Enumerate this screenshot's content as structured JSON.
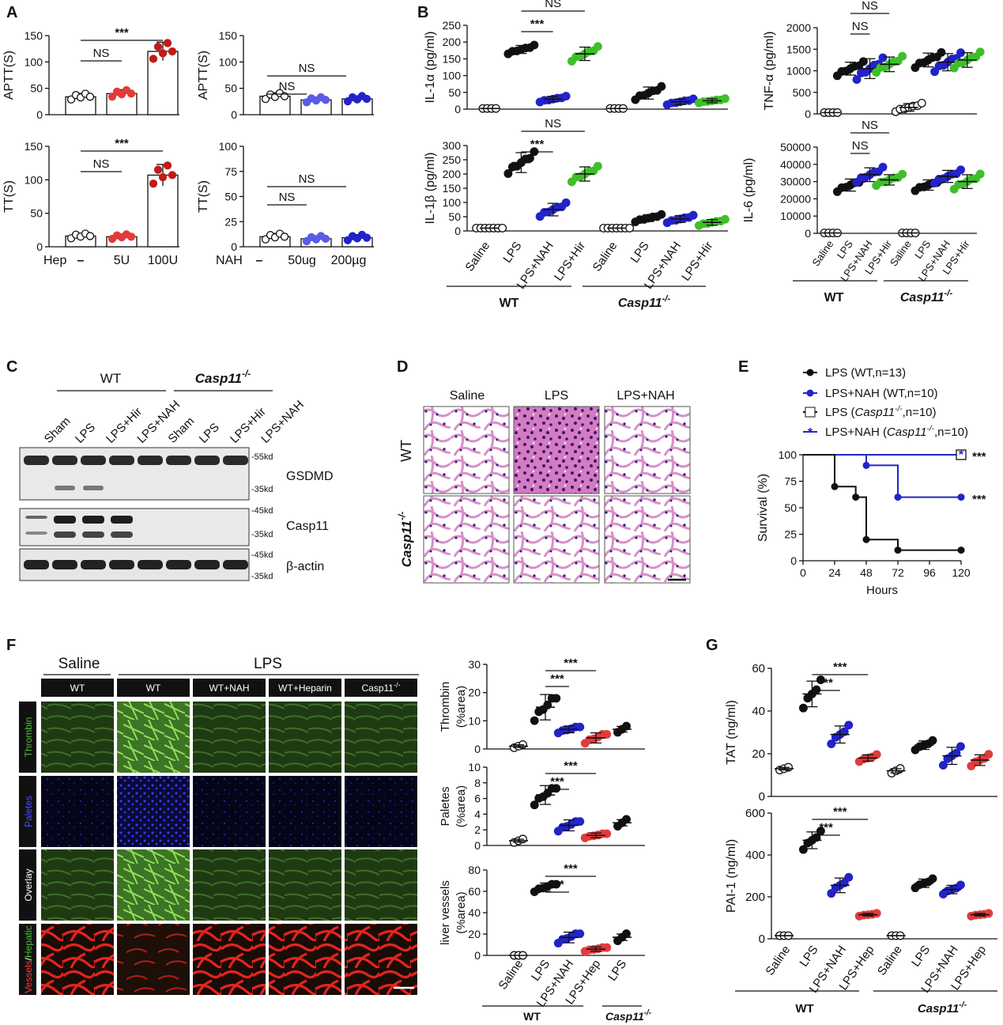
{
  "panels": {
    "A": "A",
    "B": "B",
    "C": "C",
    "D": "D",
    "E": "E",
    "F": "F",
    "G": "G"
  },
  "common": {
    "ns": "NS",
    "sig3": "***",
    "wt": "WT",
    "casp11": "Casp11",
    "casp11_sup": "-/-"
  },
  "colors": {
    "black": "#111111",
    "white": "#ffffff",
    "red": "#e23b3b",
    "dark_red": "#c21a1a",
    "blue": "#2323c8",
    "light_blue": "#5b5be6",
    "green": "#3fbf2a",
    "tissue_pink": "#e8a3d8",
    "nuclei": "#3a1f7a",
    "ihc_green": "#3e6f2a",
    "ihc_blue": "#1b1b7a",
    "ihc_red": "#d41f1f"
  },
  "panel_a": {
    "heparin_x": [
      "Hep",
      "–",
      "5U",
      "100U"
    ],
    "nah_x": [
      "NAH",
      "–",
      "50ug",
      "200µg"
    ],
    "aptt_label": "APTT(S)",
    "tt_label": "TT(S)",
    "y_ticks": [
      "0",
      "50",
      "100",
      "150"
    ],
    "chart_data": [
      {
        "type": "bar",
        "title": "",
        "ylabel": "APTT(S)",
        "categories": [
          "–",
          "5U",
          "100U"
        ],
        "values": [
          34,
          40,
          120
        ],
        "ylim": [
          0,
          150
        ]
      },
      {
        "type": "bar",
        "title": "",
        "ylabel": "APTT(S)",
        "categories": [
          "–",
          "50ug",
          "200µg"
        ],
        "values": [
          35,
          28,
          30
        ],
        "ylim": [
          0,
          150
        ]
      },
      {
        "type": "bar",
        "title": "",
        "ylabel": "TT(S)",
        "categories": [
          "–",
          "5U",
          "100U"
        ],
        "values": [
          16,
          15,
          107
        ],
        "ylim": [
          0,
          150
        ]
      },
      {
        "type": "bar",
        "title": "",
        "ylabel": "TT(S)",
        "categories": [
          "–",
          "50ug",
          "200µg"
        ],
        "values": [
          10,
          8,
          9
        ],
        "ylim": [
          0,
          100
        ]
      }
    ]
  },
  "panel_b": {
    "il1a_label": "IL-1α (pg/ml)",
    "il1b_label": "IL-1β (pg/ml)",
    "tnf_label": "TNF-α (pg/ml)",
    "il6_label": "IL-6 (pg/ml)",
    "x_labels": [
      "Saline",
      "LPS",
      "LPS+NAH",
      "LPS+Hir",
      "Saline",
      "LPS",
      "LPS+NAH",
      "LPS+Hir"
    ],
    "il1a_ticks": [
      "0",
      "50",
      "100",
      "150",
      "200",
      "250"
    ],
    "il1b_ticks": [
      "0",
      "50",
      "100",
      "150",
      "200",
      "250",
      "300"
    ],
    "tnf_ticks": [
      "0",
      "500",
      "1000",
      "1500",
      "2000"
    ],
    "il6_ticks": [
      "0",
      "10000",
      "20000",
      "30000",
      "40000",
      "50000"
    ],
    "chart_data": [
      {
        "type": "scatter",
        "ylabel": "IL-1α (pg/ml)",
        "categories": [
          "Saline",
          "LPS",
          "LPS+NAH",
          "LPS+Hir",
          "Saline",
          "LPS",
          "LPS+NAH",
          "LPS+Hir"
        ],
        "values": [
          2,
          178,
          30,
          165,
          2,
          48,
          22,
          25
        ],
        "ylim": [
          0,
          250
        ]
      },
      {
        "type": "scatter",
        "ylabel": "IL-1β (pg/ml)",
        "categories": [
          "Saline",
          "LPS",
          "LPS+NAH",
          "LPS+Hir",
          "Saline",
          "LPS",
          "LPS+NAH",
          "LPS+Hir"
        ],
        "values": [
          10,
          240,
          75,
          200,
          10,
          45,
          42,
          30
        ],
        "ylim": [
          0,
          300
        ]
      },
      {
        "type": "scatter",
        "ylabel": "TNF-α (pg/ml)",
        "categories": [
          "Saline",
          "LPS",
          "LPS+NAH",
          "LPS+Hir",
          "Saline",
          "LPS",
          "LPS+NAH",
          "LPS+Hir"
        ],
        "values": [
          30,
          1050,
          1050,
          1150,
          150,
          1250,
          1200,
          1250
        ],
        "ylim": [
          0,
          2000
        ]
      },
      {
        "type": "scatter",
        "ylabel": "IL-6 (pg/ml)",
        "categories": [
          "Saline",
          "LPS",
          "LPS+NAH",
          "LPS+Hir",
          "Saline",
          "LPS",
          "LPS+NAH",
          "LPS+Hir"
        ],
        "values": [
          200,
          28000,
          34000,
          31000,
          200,
          28000,
          33000,
          30000
        ],
        "ylim": [
          0,
          50000
        ]
      }
    ]
  },
  "panel_c": {
    "lanes": [
      "Sham",
      "LPS",
      "LPS+Hir",
      "LPS+NAH",
      "Sham",
      "LPS",
      "LPS+Hir",
      "LPS+NAH"
    ],
    "proteins": [
      "GSDMD",
      "Casp11",
      "β-actin"
    ],
    "markers": [
      "-55kd",
      "-35kd",
      "-45kd",
      "-35kd",
      "-45kd",
      "-35kd"
    ]
  },
  "panel_d": {
    "cols": [
      "Saline",
      "LPS",
      "LPS+NAH"
    ]
  },
  "panel_e": {
    "legend": [
      "LPS (WT,n=13)",
      "LPS+NAH (WT,n=10)",
      "LPS (",
      ",n=10)",
      "LPS+NAH (",
      ",n=10)"
    ],
    "ylabel": "Survival (%)",
    "xlabel": "Hours",
    "x_ticks": [
      "0",
      "24",
      "48",
      "72",
      "96",
      "120"
    ],
    "y_ticks": [
      "0",
      "25",
      "50",
      "75",
      "100"
    ],
    "chart_data": {
      "type": "line",
      "title": "",
      "xlabel": "Hours",
      "ylabel": "Survival (%)",
      "xlim": [
        0,
        120
      ],
      "ylim": [
        0,
        100
      ],
      "series": [
        {
          "name": "LPS (WT,n=13)",
          "x": [
            0,
            24,
            24,
            40,
            40,
            48,
            48,
            72,
            72,
            120
          ],
          "y": [
            100,
            100,
            70,
            70,
            60,
            60,
            20,
            20,
            10,
            10
          ]
        },
        {
          "name": "LPS+NAH (WT,n=10)",
          "x": [
            0,
            48,
            48,
            72,
            72,
            120
          ],
          "y": [
            100,
            100,
            90,
            90,
            60,
            60
          ]
        },
        {
          "name": "LPS (Casp11-/-,n=10)",
          "x": [
            0,
            120
          ],
          "y": [
            100,
            100
          ]
        },
        {
          "name": "LPS+NAH (Casp11-/-,n=10)",
          "x": [
            0,
            120
          ],
          "y": [
            100,
            100
          ]
        }
      ]
    }
  },
  "panel_f": {
    "saline": "Saline",
    "lps": "LPS",
    "cols": [
      "WT",
      "WT",
      "WT+NAH",
      "WT+Heparin",
      "Casp11"
    ],
    "rows": [
      "Thrombin",
      "Paletes",
      "Overlay",
      "Vessels",
      "/",
      "Hepatic"
    ],
    "thrombin_label": [
      "Thrombin",
      "(%area)"
    ],
    "paletes_label": [
      "Paletes",
      "(%area)"
    ],
    "vessels_label": [
      "liver vessels",
      "(%area)"
    ],
    "x_labels": [
      "Saline",
      "LPS",
      "LPS+NAH",
      "LPS+Hep",
      "LPS"
    ],
    "thrombin_ticks": [
      "0",
      "10",
      "20",
      "30"
    ],
    "paletes_ticks": [
      "0",
      "2",
      "4",
      "6",
      "8",
      "10"
    ],
    "vessels_ticks": [
      "0",
      "20",
      "40",
      "60",
      "80"
    ],
    "chart_data": [
      {
        "type": "scatter",
        "ylabel": "Thrombin (%area)",
        "categories": [
          "Saline",
          "LPS",
          "LPS+NAH",
          "LPS+Hep",
          "LPS"
        ],
        "values": [
          1,
          15,
          7,
          4,
          7
        ],
        "ylim": [
          0,
          30
        ]
      },
      {
        "type": "scatter",
        "ylabel": "Paletes (%area)",
        "categories": [
          "Saline",
          "LPS",
          "LPS+NAH",
          "LPS+Hep",
          "LPS"
        ],
        "values": [
          0.6,
          6.5,
          2.6,
          1.3,
          2.9
        ],
        "ylim": [
          0,
          10
        ]
      },
      {
        "type": "scatter",
        "ylabel": "liver vessels (%area)",
        "categories": [
          "Saline",
          "LPS",
          "LPS+NAH",
          "LPS+Hep",
          "LPS"
        ],
        "values": [
          0,
          64,
          17,
          6,
          17
        ],
        "ylim": [
          0,
          80
        ]
      }
    ]
  },
  "panel_g": {
    "tat_label": "TAT (ng/ml)",
    "pai_label": "PAI-1 (ng/ml)",
    "x_labels": [
      "Saline",
      "LPS",
      "LPS+NAH",
      "LPS+Hep",
      "Saline",
      "LPS",
      "LPS+NAH",
      "LPS+Hep"
    ],
    "tat_ticks": [
      "0",
      "20",
      "40",
      "60"
    ],
    "pai_ticks": [
      "0",
      "200",
      "400",
      "600"
    ],
    "chart_data": [
      {
        "type": "scatter",
        "ylabel": "TAT (ng/ml)",
        "categories": [
          "Saline",
          "LPS",
          "LPS+NAH",
          "LPS+Hep",
          "Saline",
          "LPS",
          "LPS+NAH",
          "LPS+Hep"
        ],
        "values": [
          13,
          48,
          29,
          18,
          12,
          24,
          19,
          17
        ],
        "ylim": [
          0,
          60
        ]
      },
      {
        "type": "scatter",
        "ylabel": "PAI-1 (ng/ml)",
        "categories": [
          "Saline",
          "LPS",
          "LPS+NAH",
          "LPS+Hep",
          "Saline",
          "LPS",
          "LPS+NAH",
          "LPS+Hep"
        ],
        "values": [
          15,
          470,
          255,
          115,
          15,
          265,
          235,
          115
        ],
        "ylim": [
          0,
          600
        ]
      }
    ]
  }
}
